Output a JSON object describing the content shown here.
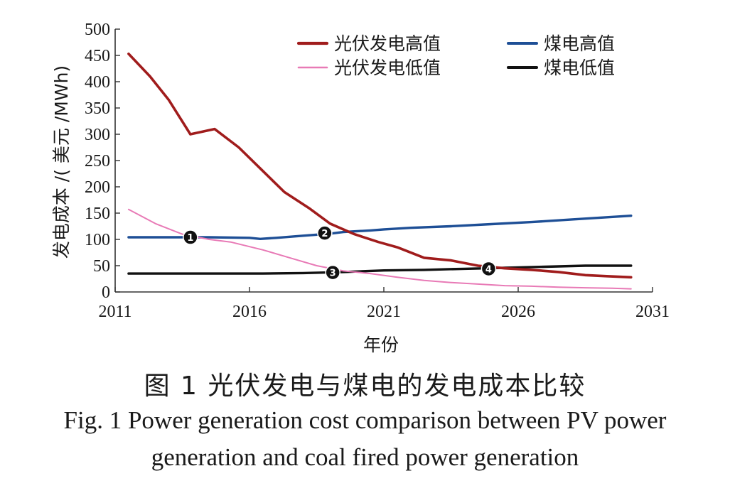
{
  "chart_data": {
    "type": "line",
    "xlabel": "年份",
    "ylabel": "发电成本 /( 美元 /MWh)",
    "xlim": [
      2011,
      2031
    ],
    "ylim": [
      0,
      500
    ],
    "xticks": [
      2011,
      2016,
      2021,
      2026,
      2031
    ],
    "yticks": [
      0,
      50,
      100,
      150,
      200,
      250,
      300,
      350,
      400,
      450,
      500
    ],
    "legend_position": "top-right",
    "grid": false,
    "series": [
      {
        "name": "光伏发电高值",
        "color": "#a01c1c",
        "x": [
          2011.5,
          2012.3,
          2013,
          2013.8,
          2014.7,
          2015.6,
          2016.5,
          2017.3,
          2018.2,
          2019,
          2019.9,
          2020.8,
          2021.5,
          2022.5,
          2023.5,
          2024.5,
          2025.5,
          2026.5,
          2027.5,
          2028.5,
          2029.3,
          2030.2
        ],
        "y": [
          453,
          410,
          365,
          300,
          310,
          275,
          230,
          190,
          160,
          130,
          110,
          95,
          85,
          65,
          60,
          50,
          45,
          42,
          38,
          32,
          30,
          28
        ]
      },
      {
        "name": "光伏发电低值",
        "color": "#e87ab6",
        "x": [
          2011.5,
          2012.5,
          2013.5,
          2014.5,
          2015.3,
          2016.5,
          2017.5,
          2018.5,
          2019.5,
          2020.5,
          2021.5,
          2022.5,
          2023.5,
          2024.5,
          2025.5,
          2026.5,
          2027.5,
          2028.5,
          2029.5,
          2030.2
        ],
        "y": [
          157,
          130,
          110,
          100,
          95,
          80,
          65,
          50,
          40,
          35,
          28,
          22,
          18,
          15,
          12,
          11,
          9,
          8,
          7,
          6
        ]
      },
      {
        "name": "煤电高值",
        "color": "#1e4f96",
        "x": [
          2011.5,
          2013,
          2014.5,
          2016,
          2016.4,
          2017,
          2018,
          2019,
          2019.5,
          2020.5,
          2021,
          2022,
          2023.5,
          2025,
          2026.5,
          2028,
          2030.2
        ],
        "y": [
          104,
          104,
          104,
          103,
          101,
          103,
          107,
          111,
          114,
          117,
          119,
          122,
          125,
          129,
          133,
          138,
          145
        ]
      },
      {
        "name": "煤电低值",
        "color": "#111111",
        "x": [
          2011.5,
          2014,
          2016.5,
          2018,
          2019.5,
          2021,
          2022.5,
          2024,
          2025.5,
          2027,
          2028.5,
          2030.2
        ],
        "y": [
          35,
          35,
          35,
          36,
          38,
          41,
          42,
          44,
          46,
          48,
          50,
          50
        ]
      }
    ],
    "annotations": [
      {
        "label": "1",
        "x": 2013.8,
        "y": 104
      },
      {
        "label": "2",
        "x": 2018.8,
        "y": 112
      },
      {
        "label": "3",
        "x": 2019.1,
        "y": 37
      },
      {
        "label": "4",
        "x": 2024.9,
        "y": 44
      }
    ]
  },
  "caption": {
    "chinese": "图 1  光伏发电与煤电的发电成本比较",
    "english_line1": "Fig. 1  Power generation cost comparison between PV power",
    "english_line2": "generation and coal fired power generation"
  }
}
